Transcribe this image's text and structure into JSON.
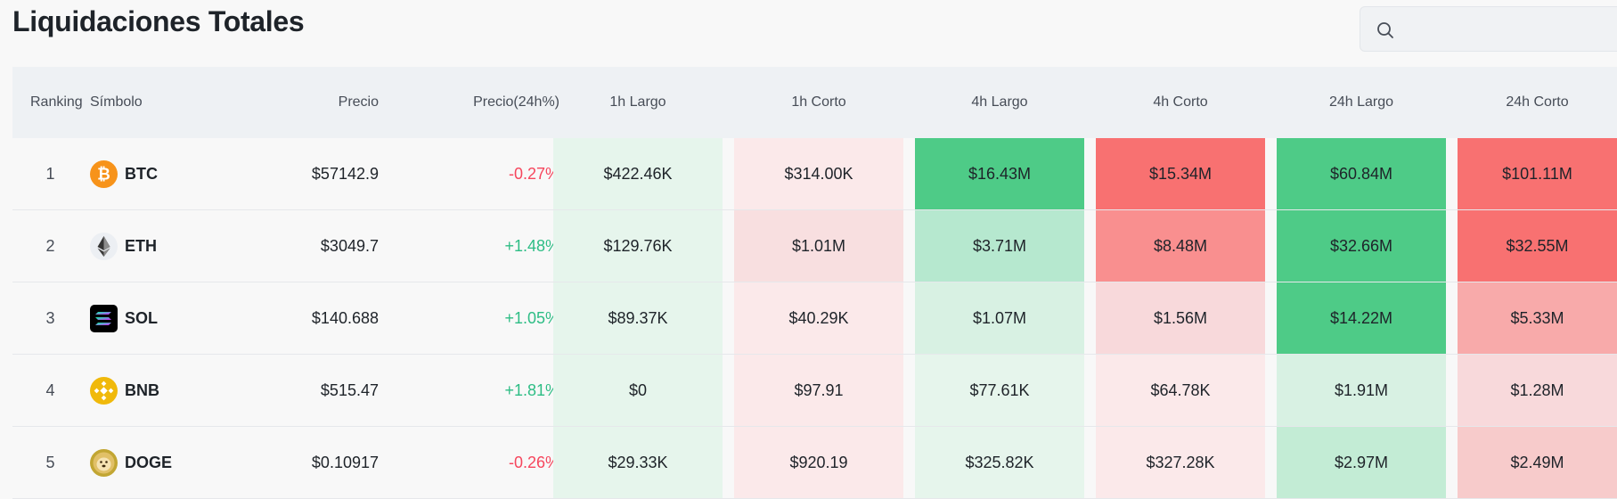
{
  "page": {
    "title": "Liquidaciones Totales"
  },
  "search": {
    "placeholder": ""
  },
  "colors": {
    "positive": "#2ebd85",
    "negative": "#f6465d",
    "header_bg": "#eef1f4",
    "long_strong": "#4ecb87",
    "short_strong": "#f87171"
  },
  "table": {
    "headers": {
      "ranking": "Ranking",
      "symbol": "Símbolo",
      "price": "Precio",
      "change": "Precio(24h%)",
      "h1_long": "1h Largo",
      "h1_short": "1h Corto",
      "h4_long": "4h Largo",
      "h4_short": "4h Corto",
      "h24_long": "24h Largo",
      "h24_short": "24h Corto"
    },
    "rows": [
      {
        "rank": "1",
        "symbol": "BTC",
        "icon": "bitcoin-icon",
        "price": "$57142.9",
        "change": "-0.27%",
        "h1_long": "$422.46K",
        "h1_short": "$314.00K",
        "h4_long": "$16.43M",
        "h4_short": "$15.34M",
        "h24_long": "$60.84M",
        "h24_short": "$101.11M"
      },
      {
        "rank": "2",
        "symbol": "ETH",
        "icon": "ethereum-icon",
        "price": "$3049.7",
        "change": "+1.48%",
        "h1_long": "$129.76K",
        "h1_short": "$1.01M",
        "h4_long": "$3.71M",
        "h4_short": "$8.48M",
        "h24_long": "$32.66M",
        "h24_short": "$32.55M"
      },
      {
        "rank": "3",
        "symbol": "SOL",
        "icon": "solana-icon",
        "price": "$140.688",
        "change": "+1.05%",
        "h1_long": "$89.37K",
        "h1_short": "$40.29K",
        "h4_long": "$1.07M",
        "h4_short": "$1.56M",
        "h24_long": "$14.22M",
        "h24_short": "$5.33M"
      },
      {
        "rank": "4",
        "symbol": "BNB",
        "icon": "bnb-icon",
        "price": "$515.47",
        "change": "+1.81%",
        "h1_long": "$0",
        "h1_short": "$97.91",
        "h4_long": "$77.61K",
        "h4_short": "$64.78K",
        "h24_long": "$1.91M",
        "h24_short": "$1.28M"
      },
      {
        "rank": "5",
        "symbol": "DOGE",
        "icon": "dogecoin-icon",
        "price": "$0.10917",
        "change": "-0.26%",
        "h1_long": "$29.33K",
        "h1_short": "$920.19",
        "h4_long": "$325.82K",
        "h4_short": "$327.28K",
        "h24_long": "$2.97M",
        "h24_short": "$2.49M"
      }
    ]
  }
}
